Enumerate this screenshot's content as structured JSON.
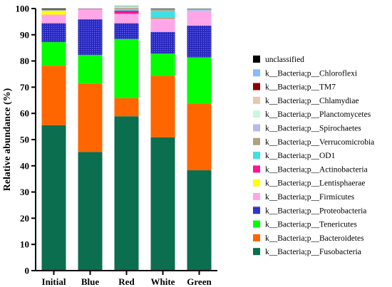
{
  "chart_data": {
    "type": "stacked-bar",
    "title": "",
    "xlabel": "",
    "ylabel": "Relative abundance (%)",
    "ylim": [
      0,
      100
    ],
    "yticks": [
      0,
      10,
      20,
      30,
      40,
      50,
      60,
      70,
      80,
      90,
      100
    ],
    "categories": [
      "Initial",
      "Blue",
      "Red",
      "White",
      "Green"
    ],
    "legend_position": "right",
    "series": [
      {
        "name": "k__Bacteria;p__Fusobacteria",
        "color": "#0b6e4f",
        "pattern": "none",
        "values": [
          55.5,
          45.3,
          58.9,
          50.9,
          38.3
        ]
      },
      {
        "name": "k__Bacteria;p__Bacteroidetes",
        "color": "#ff6600",
        "pattern": "none",
        "values": [
          22.7,
          26.1,
          6.9,
          23.4,
          25.4
        ]
      },
      {
        "name": "k__Bacteria;p__Tenericutes",
        "color": "#00ff00",
        "pattern": "none",
        "values": [
          9.0,
          10.9,
          22.6,
          8.5,
          17.7
        ]
      },
      {
        "name": "k__Bacteria;p__Proteobacteria",
        "color": "#3030c0",
        "pattern": "dots",
        "values": [
          7.2,
          13.6,
          6.0,
          8.3,
          12.1
        ]
      },
      {
        "name": "k__Bacteria;p__Firmicutes",
        "color": "#ffa6e8",
        "pattern": "none",
        "values": [
          3.3,
          4.0,
          3.6,
          4.8,
          5.8
        ]
      },
      {
        "name": "k__Bacteria;p__Lentisphaerae",
        "color": "#ffff00",
        "pattern": "none",
        "values": [
          1.4,
          0.0,
          0.0,
          0.2,
          0.0
        ]
      },
      {
        "name": "k__Bacteria;p__Actinobacteria",
        "color": "#ff1493",
        "pattern": "none",
        "values": [
          0.0,
          0.0,
          1.2,
          0.2,
          0.0
        ]
      },
      {
        "name": "k__Bacteria;p__OD1",
        "color": "#40e0e8",
        "pattern": "none",
        "values": [
          0.1,
          0.0,
          0.5,
          2.8,
          0.5
        ]
      },
      {
        "name": "k__Bacteria;p__Verrucomicrobia",
        "color": "#b0a080",
        "pattern": "none",
        "values": [
          0.5,
          0.0,
          0.5,
          0.6,
          0.1
        ]
      },
      {
        "name": "k__Bacteria;p__Spirochaetes",
        "color": "#b8b8f0",
        "pattern": "none",
        "values": [
          0.0,
          0.0,
          0.2,
          0.0,
          0.0
        ]
      },
      {
        "name": "k__Bacteria;p__Planctomycetes",
        "color": "#c8f8e0",
        "pattern": "none",
        "values": [
          0.0,
          0.0,
          0.5,
          0.1,
          0.0
        ]
      },
      {
        "name": "k__Bacteria;p__Chlamydiae",
        "color": "#e8c8b0",
        "pattern": "none",
        "values": [
          0.0,
          0.0,
          0.0,
          0.0,
          0.0
        ]
      },
      {
        "name": "k__Bacteria;p__TM7",
        "color": "#8b0000",
        "pattern": "none",
        "values": [
          0.0,
          0.0,
          0.0,
          0.0,
          0.0
        ]
      },
      {
        "name": "k__Bacteria;p__Chloroflexi",
        "color": "#88bbff",
        "pattern": "none",
        "values": [
          0.0,
          0.0,
          0.0,
          0.0,
          0.0
        ]
      },
      {
        "name": "unclassified",
        "color": "#000000",
        "pattern": "none",
        "values": [
          0.3,
          0.1,
          0.1,
          0.2,
          0.1
        ]
      }
    ]
  }
}
